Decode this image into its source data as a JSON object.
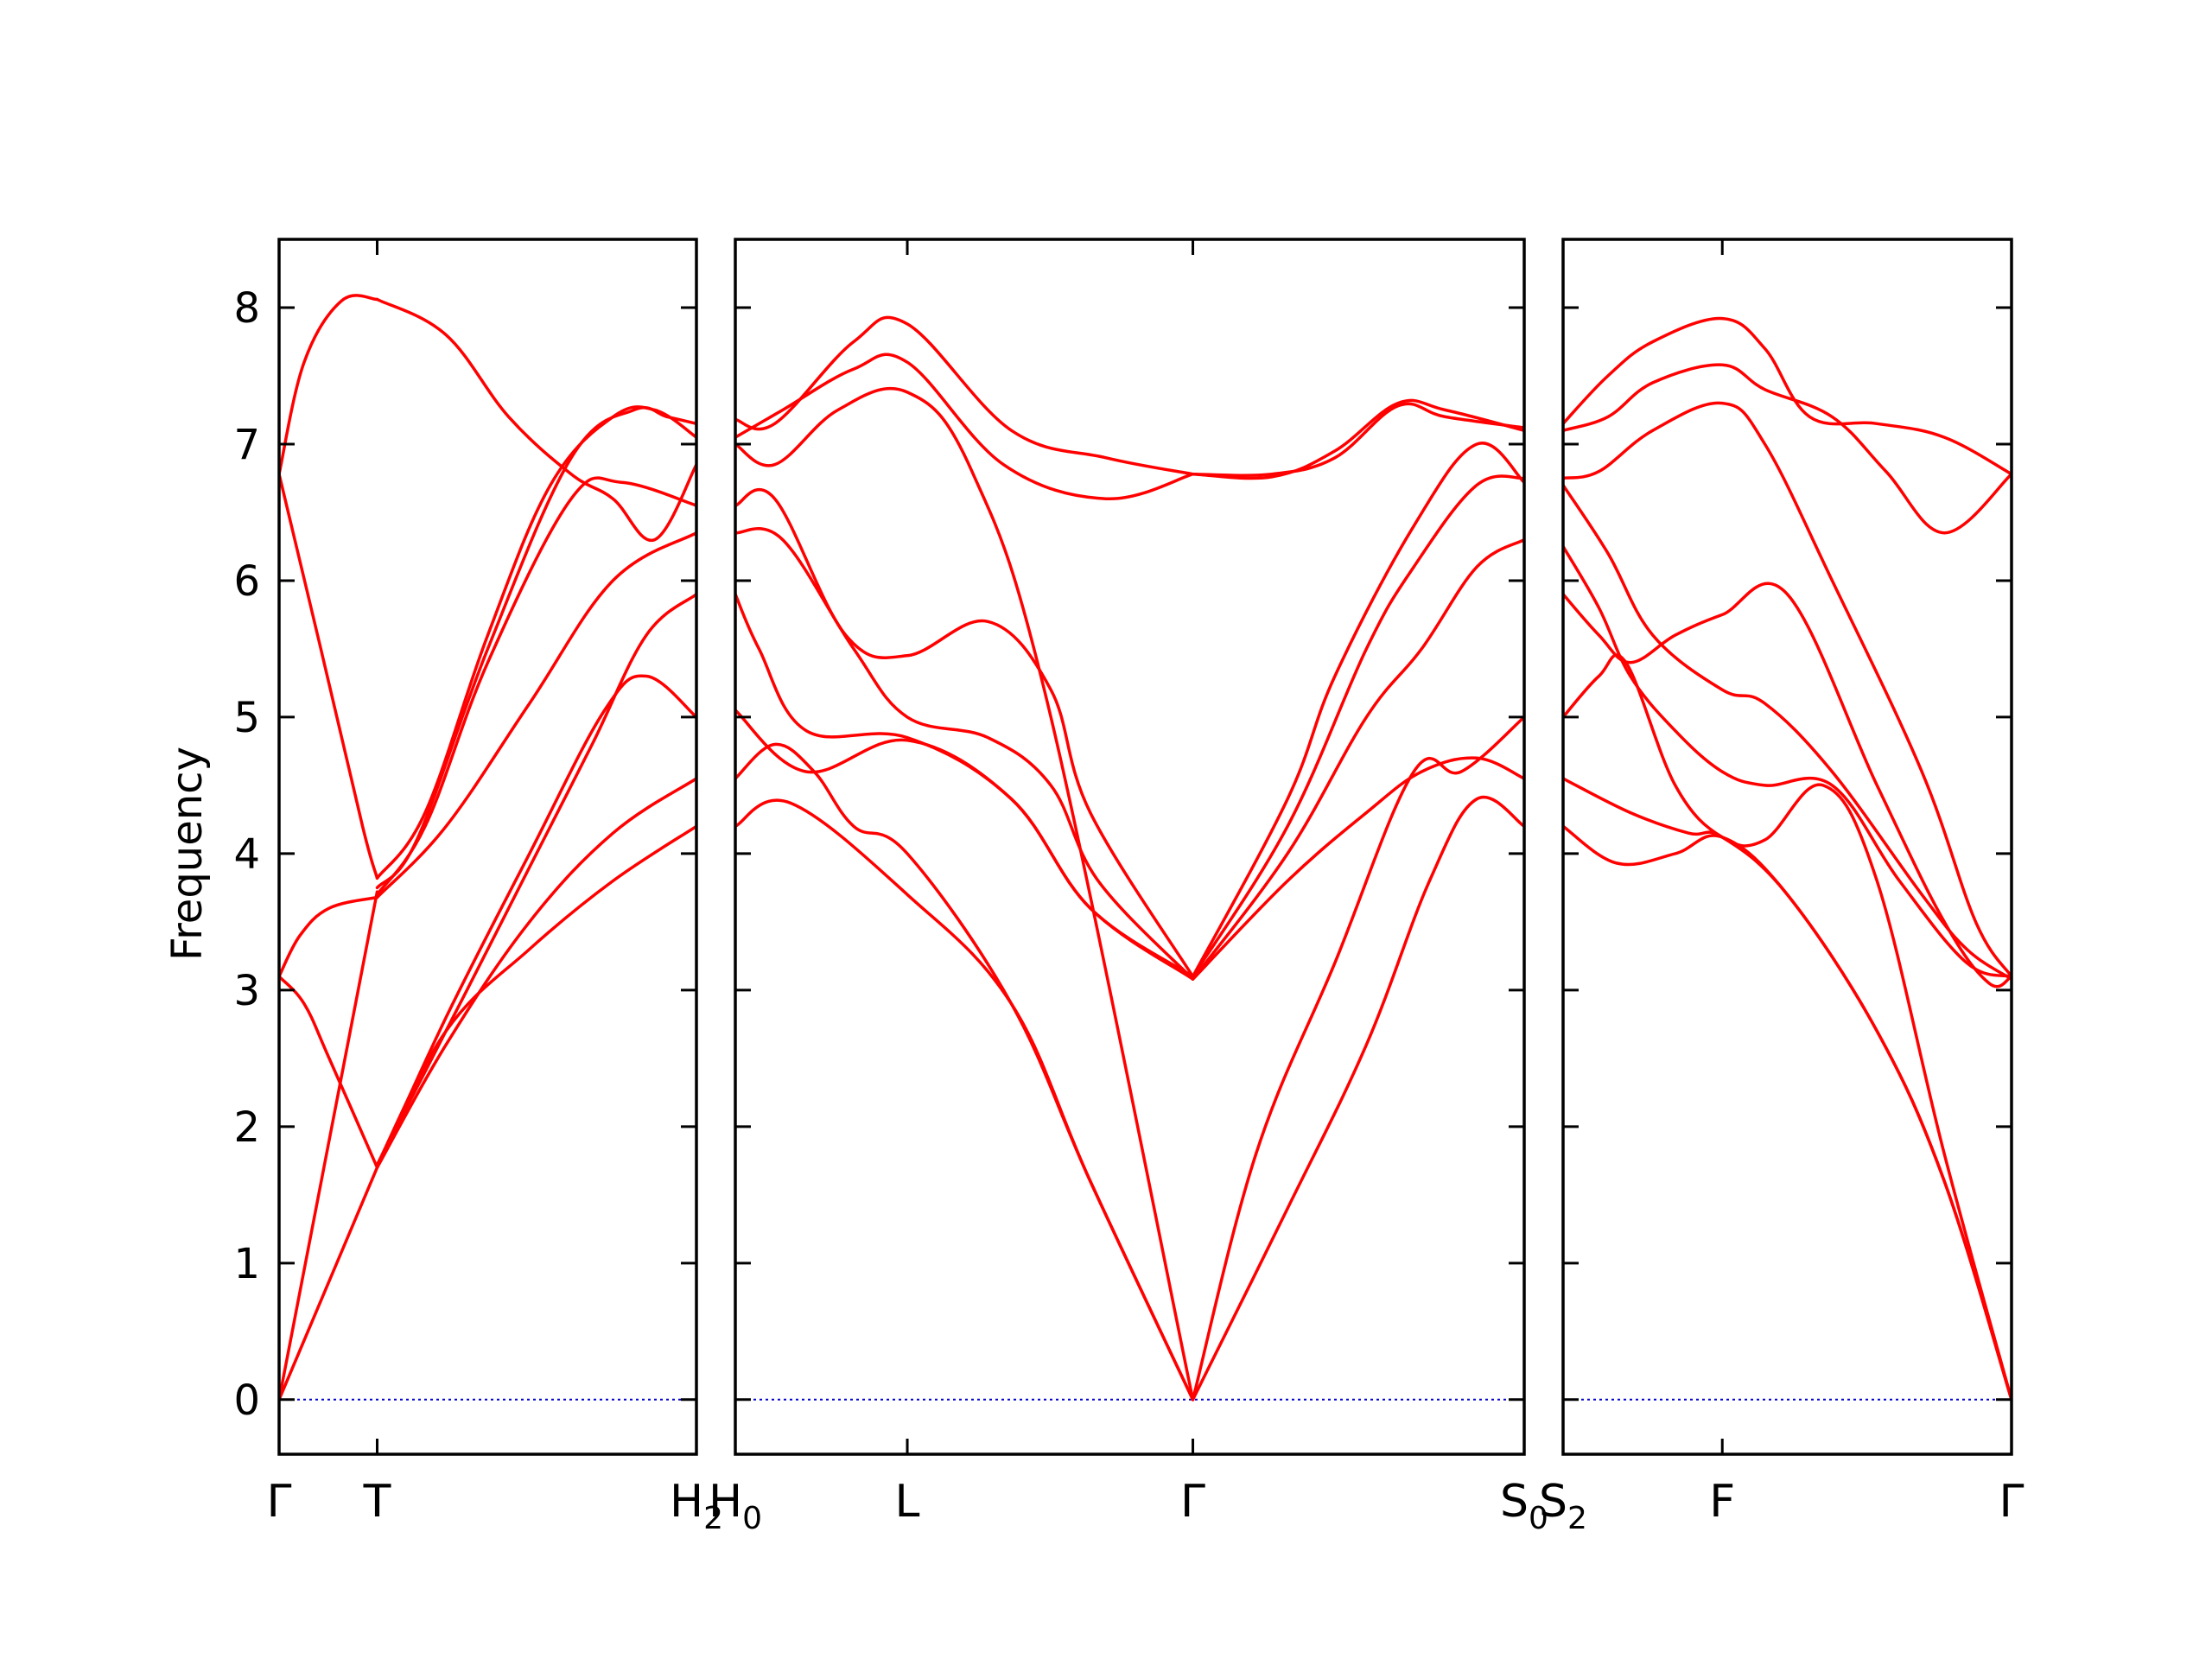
{
  "chart_data": {
    "type": "line",
    "title": "",
    "ylabel": "Frequency",
    "xlabel": "",
    "ylim": [
      -0.4,
      8.5
    ],
    "yticks": [
      "0",
      "1",
      "2",
      "3",
      "4",
      "5",
      "6",
      "7",
      "8"
    ],
    "grid": false,
    "colors": {
      "bands": "#ff0000",
      "zero_line": "#0000cc",
      "frame": "#000000"
    },
    "panels": [
      {
        "xrange": [
          0,
          1
        ],
        "kpoints": [
          {
            "x": 0.0,
            "label": "Γ",
            "sub": ""
          },
          {
            "x": 0.235,
            "label": "T",
            "sub": ""
          },
          {
            "x": 1.0,
            "label": "H",
            "sub": "2"
          }
        ],
        "bands": [
          {
            "x": [
              0,
              0.235
            ],
            "y": [
              0.0,
              1.7
            ]
          },
          {
            "x": [
              0,
              0.235
            ],
            "y": [
              0.0,
              3.72
            ]
          },
          {
            "x": [
              0,
              0.06,
              0.12,
              0.235
            ],
            "y": [
              3.1,
              2.9,
              2.5,
              1.7
            ]
          },
          {
            "x": [
              0,
              0.05,
              0.12,
              0.235
            ],
            "y": [
              3.1,
              3.4,
              3.6,
              3.68
            ]
          },
          {
            "x": [
              0,
              0.1,
              0.2,
              0.235
            ],
            "y": [
              6.78,
              5.5,
              4.2,
              3.82
            ]
          },
          {
            "x": [
              0,
              0.06,
              0.15,
              0.235
            ],
            "y": [
              6.78,
              7.6,
              8.05,
              8.06
            ]
          },
          {
            "x": [
              0.235,
              0.4,
              0.6,
              0.78,
              0.88,
              1.0
            ],
            "y": [
              1.7,
              2.8,
              4.0,
              5.05,
              5.3,
              5.0
            ]
          },
          {
            "x": [
              0.235,
              0.4,
              0.6,
              0.8,
              1.0
            ],
            "y": [
              1.7,
              2.6,
              3.5,
              4.15,
              4.55
            ]
          },
          {
            "x": [
              0.235,
              0.4,
              0.6,
              0.8,
              1.0
            ],
            "y": [
              1.72,
              2.7,
              3.3,
              3.8,
              4.2
            ]
          },
          {
            "x": [
              0.235,
              0.45,
              0.6,
              0.75,
              0.88,
              1.0
            ],
            "y": [
              1.72,
              3.0,
              3.9,
              4.8,
              5.6,
              5.9
            ]
          },
          {
            "x": [
              0.235,
              0.4,
              0.6,
              0.8,
              1.0
            ],
            "y": [
              3.68,
              4.2,
              5.1,
              6.0,
              6.35
            ]
          },
          {
            "x": [
              0.235,
              0.35,
              0.5,
              0.7,
              0.82,
              1.0
            ],
            "y": [
              3.7,
              4.2,
              5.4,
              6.6,
              6.72,
              6.55
            ]
          },
          {
            "x": [
              0.235,
              0.35,
              0.5,
              0.65,
              0.8,
              0.9,
              1.0
            ],
            "y": [
              3.82,
              4.3,
              5.6,
              6.7,
              7.2,
              7.25,
              7.05
            ]
          },
          {
            "x": [
              0.235,
              0.4,
              0.55,
              0.7,
              0.8,
              0.9,
              1.0
            ],
            "y": [
              8.06,
              7.8,
              7.2,
              6.78,
              6.6,
              6.3,
              6.85
            ]
          },
          {
            "x": [
              0.235,
              0.33,
              0.5,
              0.7,
              0.85,
              0.93,
              1.0
            ],
            "y": [
              3.75,
              4.1,
              5.5,
              6.9,
              7.25,
              7.2,
              7.15
            ]
          }
        ]
      },
      {
        "xrange": [
          0,
          1
        ],
        "kpoints": [
          {
            "x": 0.0,
            "label": "H",
            "sub": "0"
          },
          {
            "x": 0.218,
            "label": "L",
            "sub": ""
          },
          {
            "x": 0.58,
            "label": "Γ",
            "sub": ""
          },
          {
            "x": 1.0,
            "label": "S",
            "sub": "0"
          }
        ],
        "bands": [
          {
            "x": [
              0,
              0.07,
              0.218,
              0.35,
              0.45,
              0.58
            ],
            "y": [
              4.2,
              4.37,
              3.7,
              2.9,
              1.6,
              0.0
            ]
          },
          {
            "x": [
              0,
              0.05,
              0.1,
              0.15,
              0.218,
              0.35,
              0.45,
              0.58
            ],
            "y": [
              4.55,
              4.8,
              4.6,
              4.2,
              4.0,
              2.9,
              1.6,
              0.0
            ]
          },
          {
            "x": [
              0,
              0.09,
              0.218,
              0.35,
              0.45,
              0.58
            ],
            "y": [
              5.05,
              4.6,
              4.83,
              4.4,
              3.6,
              3.1
            ]
          },
          {
            "x": [
              0,
              0.03,
              0.09,
              0.218,
              0.35,
              0.45,
              0.58
            ],
            "y": [
              5.9,
              5.5,
              4.9,
              4.85,
              4.4,
              3.6,
              3.08
            ]
          },
          {
            "x": [
              0,
              0.06,
              0.15,
              0.218,
              0.32,
              0.4,
              0.46,
              0.58
            ],
            "y": [
              6.35,
              6.3,
              5.5,
              5.0,
              4.85,
              4.5,
              3.8,
              3.08
            ]
          },
          {
            "x": [
              0,
              0.05,
              0.14,
              0.218,
              0.32,
              0.4,
              0.45,
              0.58
            ],
            "y": [
              6.55,
              6.6,
              5.6,
              5.45,
              5.7,
              5.2,
              4.3,
              3.1
            ]
          },
          {
            "x": [
              0,
              0.05,
              0.13,
              0.218,
              0.3,
              0.4,
              0.58
            ],
            "y": [
              7.0,
              6.85,
              7.25,
              7.38,
              6.8,
              5.0,
              0.0
            ]
          },
          {
            "x": [
              0,
              0.05,
              0.15,
              0.218,
              0.35,
              0.47,
              0.58
            ],
            "y": [
              7.18,
              7.15,
              7.75,
              7.88,
              7.1,
              6.9,
              6.78
            ]
          },
          {
            "x": [
              0,
              0.06,
              0.15,
              0.218,
              0.34,
              0.47,
              0.58
            ],
            "y": [
              7.05,
              7.25,
              7.55,
              7.6,
              6.85,
              6.6,
              6.78
            ]
          },
          {
            "x": [
              0.58,
              0.7,
              0.8,
              0.88,
              0.94,
              1.0
            ],
            "y": [
              0.0,
              1.4,
              2.6,
              3.8,
              4.4,
              4.2
            ]
          },
          {
            "x": [
              0.58,
              0.66,
              0.76,
              0.86,
              0.92,
              1.0
            ],
            "y": [
              0.0,
              1.8,
              3.2,
              4.6,
              4.6,
              5.0
            ]
          },
          {
            "x": [
              0.58,
              0.7,
              0.8,
              0.87,
              0.94,
              1.0
            ],
            "y": [
              3.08,
              3.8,
              4.3,
              4.6,
              4.7,
              4.55
            ]
          },
          {
            "x": [
              0.58,
              0.7,
              0.8,
              0.87,
              0.94,
              1.0
            ],
            "y": [
              3.08,
              4.0,
              5.0,
              5.5,
              6.1,
              6.3
            ]
          },
          {
            "x": [
              0.58,
              0.7,
              0.8,
              0.86,
              0.94,
              1.0
            ],
            "y": [
              3.1,
              4.2,
              5.5,
              6.1,
              6.7,
              6.75
            ]
          },
          {
            "x": [
              0.58,
              0.7,
              0.76,
              0.86,
              0.94,
              1.0
            ],
            "y": [
              3.1,
              4.4,
              5.3,
              6.4,
              7.0,
              6.72
            ]
          },
          {
            "x": [
              0.58,
              0.68,
              0.76,
              0.84,
              0.9,
              1.0
            ],
            "y": [
              6.78,
              6.76,
              6.95,
              7.3,
              7.25,
              7.1
            ]
          },
          {
            "x": [
              0.58,
              0.68,
              0.76,
              0.84,
              0.9,
              1.0
            ],
            "y": [
              6.78,
              6.78,
              6.9,
              7.28,
              7.2,
              7.12
            ]
          }
        ]
      },
      {
        "xrange": [
          0,
          1
        ],
        "kpoints": [
          {
            "x": 0.0,
            "label": "S",
            "sub": "2"
          },
          {
            "x": 0.355,
            "label": "F",
            "sub": ""
          },
          {
            "x": 1.0,
            "label": "Γ",
            "sub": ""
          }
        ],
        "bands": [
          {
            "x": [
              0,
              0.12,
              0.25,
              0.355,
              0.5,
              0.7,
              0.85,
              1.0
            ],
            "y": [
              4.2,
              3.93,
              4.0,
              4.12,
              3.7,
              2.7,
              1.6,
              0.0
            ]
          },
          {
            "x": [
              0,
              0.15,
              0.28,
              0.355,
              0.5,
              0.7,
              0.85,
              1.0
            ],
            "y": [
              4.55,
              4.3,
              4.15,
              4.12,
              3.7,
              2.7,
              1.6,
              0.0
            ]
          },
          {
            "x": [
              0,
              0.08,
              0.14,
              0.25,
              0.355,
              0.45,
              0.58,
              0.7,
              0.85,
              1.0
            ],
            "y": [
              5.0,
              5.3,
              5.4,
              4.5,
              4.12,
              4.1,
              4.5,
              3.8,
              1.8,
              0.0
            ]
          },
          {
            "x": [
              0,
              0.08,
              0.15,
              0.25,
              0.355,
              0.45,
              0.6,
              0.75,
              0.9,
              1.0
            ],
            "y": [
              6.25,
              5.8,
              5.3,
              4.9,
              4.6,
              4.5,
              4.5,
              3.8,
              3.2,
              3.1
            ]
          },
          {
            "x": [
              0,
              0.08,
              0.15,
              0.25,
              0.355,
              0.5,
              0.7,
              0.85,
              0.95,
              1.0
            ],
            "y": [
              5.9,
              5.6,
              5.4,
              5.6,
              5.75,
              5.9,
              4.5,
              3.5,
              3.05,
              3.1
            ]
          },
          {
            "x": [
              0,
              0.1,
              0.2,
              0.355,
              0.45,
              0.6,
              0.8,
              0.9,
              1.0
            ],
            "y": [
              6.7,
              6.2,
              5.6,
              5.2,
              5.1,
              4.6,
              3.7,
              3.3,
              3.08
            ]
          },
          {
            "x": [
              0,
              0.08,
              0.2,
              0.355,
              0.45,
              0.6,
              0.8,
              0.92,
              1.0
            ],
            "y": [
              6.75,
              6.8,
              7.1,
              7.3,
              7.0,
              6.0,
              4.6,
              3.5,
              3.1
            ]
          },
          {
            "x": [
              0,
              0.1,
              0.2,
              0.355,
              0.45,
              0.6,
              0.72,
              0.85,
              1.0
            ],
            "y": [
              7.1,
              7.2,
              7.45,
              7.58,
              7.4,
              7.2,
              6.8,
              6.35,
              6.78
            ]
          },
          {
            "x": [
              0,
              0.1,
              0.2,
              0.355,
              0.45,
              0.55,
              0.7,
              0.85,
              1.0
            ],
            "y": [
              7.15,
              7.5,
              7.75,
              7.92,
              7.7,
              7.2,
              7.15,
              7.05,
              6.78
            ]
          }
        ]
      }
    ]
  }
}
